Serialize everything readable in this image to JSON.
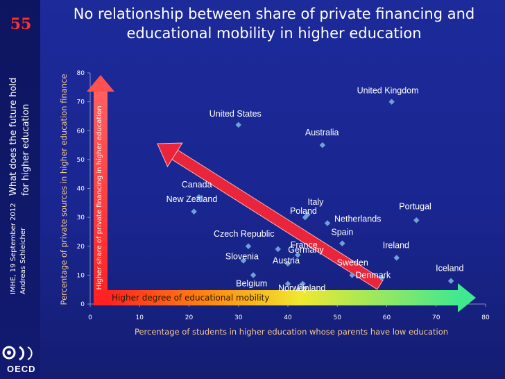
{
  "slide": {
    "number": "55",
    "side_title_line1": "What does the future hold",
    "side_title_line2": "for higher education",
    "side_date": "IMHE, 19 September 2012",
    "side_author": "Andreas Schleicher",
    "logo_text": "OECD"
  },
  "chart_data": {
    "type": "scatter",
    "title": "No relationship between share of private financing and educational mobility in higher education",
    "xlabel": "Percentage of students in higher education whose parents have low education",
    "ylabel": "Percentage of private sources in higher education finance",
    "xlim": [
      0,
      80
    ],
    "ylim": [
      0,
      80
    ],
    "x_ticks": [
      0,
      10,
      20,
      30,
      40,
      50,
      60,
      70,
      80
    ],
    "y_ticks": [
      0,
      10,
      20,
      30,
      40,
      50,
      60,
      70,
      80
    ],
    "grid": false,
    "marker_color": "#6fa0d8",
    "points": [
      {
        "label": "United Kingdom",
        "x": 61,
        "y": 70
      },
      {
        "label": "United States",
        "x": 30,
        "y": 62
      },
      {
        "label": "Australia",
        "x": 47,
        "y": 55
      },
      {
        "label": "Canada",
        "x": 22,
        "y": 37
      },
      {
        "label": "New Zealand",
        "x": 21,
        "y": 32
      },
      {
        "label": "Italy",
        "x": 44,
        "y": 31
      },
      {
        "label": "Poland",
        "x": 43.5,
        "y": 30,
        "color": "#ff6060"
      },
      {
        "label": "Netherlands",
        "x": 48,
        "y": 28
      },
      {
        "label": "Portugal",
        "x": 66,
        "y": 29
      },
      {
        "label": "Czech Republic",
        "x": 32,
        "y": 20
      },
      {
        "label": "Spain",
        "x": 51,
        "y": 21,
        "color": "#ff6060"
      },
      {
        "label": "France",
        "x": 38,
        "y": 19
      },
      {
        "label": "Germany",
        "x": 42,
        "y": 17
      },
      {
        "label": "Slovenia",
        "x": 31,
        "y": 15
      },
      {
        "label": "Ireland",
        "x": 62,
        "y": 16
      },
      {
        "label": "Austria",
        "x": 40,
        "y": 14
      },
      {
        "label": "Belgium",
        "x": 33,
        "y": 10
      },
      {
        "label": "Sweden",
        "x": 53,
        "y": 10
      },
      {
        "label": "Iceland",
        "x": 73,
        "y": 8
      },
      {
        "label": "Denmark",
        "x": 59,
        "y": 9
      },
      {
        "label": "Norway",
        "x": 40,
        "y": 7
      },
      {
        "label": "Finland",
        "x": 43,
        "y": 7
      }
    ],
    "annotations": {
      "vertical_arrow": "Higher share of private financing in higher education",
      "horizontal_arrow": "Higher degree of educational mobility"
    }
  }
}
